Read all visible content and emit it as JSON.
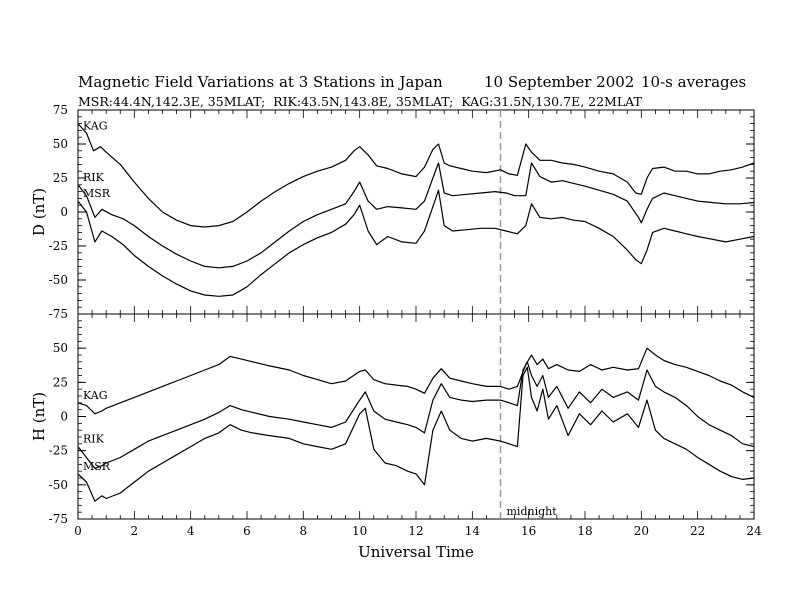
{
  "header": {
    "title": "Magnetic Field Variations at 3 Stations in Japan",
    "date": "10 September 2002",
    "averaging": "10-s averages",
    "stations_line": "MSR:44.4N,142.3E, 35MLAT;  RIK:43.5N,143.8E, 35MLAT;  KAG:31.5N,130.7E, 22MLAT"
  },
  "chart_data": [
    {
      "type": "line",
      "panel": "top",
      "ylabel": "D (nT)",
      "xlim": [
        0,
        24
      ],
      "ylim": [
        -75,
        75
      ],
      "yticks": [
        75,
        50,
        25,
        0,
        -25,
        -50,
        -75
      ],
      "xticks": [],
      "vertical_marker_x": 15,
      "series": [
        {
          "name": "KAG",
          "x": [
            0,
            0.3,
            0.55,
            0.8,
            1,
            1.5,
            2,
            2.5,
            3,
            3.5,
            4,
            4.5,
            5,
            5.5,
            6,
            6.5,
            7,
            7.5,
            8,
            8.5,
            9,
            9.5,
            9.8,
            10,
            10.3,
            10.6,
            11,
            11.5,
            12,
            12.3,
            12.6,
            12.8,
            13,
            13.2,
            13.6,
            14,
            14.5,
            15,
            15.3,
            15.6,
            15.9,
            16.1,
            16.4,
            16.8,
            17.2,
            17.6,
            18,
            18.5,
            19,
            19.5,
            19.8,
            20,
            20.2,
            20.4,
            20.8,
            21.2,
            21.6,
            22,
            22.4,
            22.8,
            23.2,
            23.6,
            24
          ],
          "values": [
            65,
            58,
            45,
            48,
            44,
            35,
            22,
            10,
            0,
            -6,
            -10,
            -11,
            -10,
            -7,
            0,
            8,
            15,
            21,
            26,
            30,
            33,
            38,
            45,
            48,
            42,
            34,
            32,
            28,
            26,
            33,
            46,
            50,
            36,
            34,
            32,
            30,
            29,
            31,
            28,
            27,
            50,
            44,
            38,
            38,
            36,
            35,
            33,
            30,
            28,
            22,
            14,
            13,
            25,
            32,
            33,
            30,
            30,
            28,
            28,
            30,
            31,
            33,
            36
          ]
        },
        {
          "name": "RIK",
          "x": [
            0,
            0.3,
            0.6,
            0.85,
            1.2,
            1.6,
            2,
            2.5,
            3,
            3.5,
            4,
            4.5,
            5,
            5.5,
            6,
            6.5,
            7,
            7.5,
            8,
            8.5,
            9,
            9.5,
            9.8,
            10,
            10.3,
            10.6,
            11,
            11.5,
            12,
            12.3,
            12.6,
            12.8,
            13,
            13.3,
            13.8,
            14.3,
            14.8,
            15.2,
            15.5,
            15.9,
            16.1,
            16.4,
            16.8,
            17.2,
            17.6,
            18,
            18.5,
            19,
            19.5,
            19.9,
            20,
            20.2,
            20.4,
            20.8,
            21.2,
            21.6,
            22,
            22.5,
            23,
            23.5,
            24
          ],
          "values": [
            20,
            12,
            -4,
            2,
            -2,
            -5,
            -10,
            -18,
            -25,
            -31,
            -36,
            -40,
            -41,
            -40,
            -36,
            -30,
            -22,
            -14,
            -7,
            -2,
            2,
            6,
            15,
            22,
            8,
            2,
            4,
            3,
            2,
            8,
            25,
            36,
            14,
            12,
            13,
            14,
            15,
            14,
            12,
            12,
            36,
            26,
            22,
            23,
            21,
            19,
            16,
            13,
            8,
            -4,
            -8,
            2,
            10,
            14,
            12,
            10,
            8,
            7,
            6,
            6,
            7
          ]
        },
        {
          "name": "MSR",
          "x": [
            0,
            0.3,
            0.6,
            0.85,
            1.2,
            1.6,
            2,
            2.5,
            3,
            3.5,
            4,
            4.5,
            5,
            5.5,
            6,
            6.5,
            7,
            7.5,
            8,
            8.5,
            9,
            9.5,
            9.8,
            10,
            10.3,
            10.6,
            11,
            11.5,
            12,
            12.3,
            12.6,
            12.8,
            13,
            13.3,
            13.8,
            14.3,
            14.8,
            15.2,
            15.6,
            15.9,
            16.1,
            16.4,
            16.8,
            17.2,
            17.6,
            18,
            18.5,
            19,
            19.5,
            19.8,
            20,
            20.2,
            20.4,
            20.8,
            21.2,
            21.6,
            22,
            22.5,
            23,
            23.5,
            24
          ],
          "values": [
            8,
            0,
            -22,
            -14,
            -18,
            -24,
            -32,
            -40,
            -47,
            -53,
            -58,
            -61,
            -62,
            -61,
            -55,
            -46,
            -38,
            -30,
            -24,
            -19,
            -15,
            -9,
            -2,
            5,
            -14,
            -24,
            -18,
            -22,
            -23,
            -14,
            4,
            16,
            -10,
            -14,
            -13,
            -12,
            -12,
            -14,
            -16,
            -10,
            6,
            -4,
            -5,
            -4,
            -6,
            -7,
            -12,
            -18,
            -28,
            -35,
            -38,
            -28,
            -15,
            -12,
            -14,
            -16,
            -18,
            -20,
            -22,
            -20,
            -18
          ]
        }
      ]
    },
    {
      "type": "line",
      "panel": "bottom",
      "ylabel": "H (nT)",
      "xlabel": "Universal Time",
      "xlim": [
        0,
        24
      ],
      "ylim": [
        -75,
        75
      ],
      "yticks": [
        50,
        25,
        0,
        -25,
        -50,
        -75
      ],
      "xticks": [
        0,
        2,
        4,
        6,
        8,
        10,
        12,
        14,
        16,
        18,
        20,
        22,
        24
      ],
      "vertical_marker_x": 15,
      "vertical_marker_label": "midnight",
      "series": [
        {
          "name": "KAG",
          "x": [
            0,
            0.3,
            0.6,
            0.85,
            1,
            1.5,
            2,
            2.5,
            3,
            3.5,
            4,
            4.5,
            5,
            5.4,
            5.8,
            6.2,
            6.8,
            7.5,
            8,
            8.5,
            9,
            9.5,
            10,
            10.2,
            10.5,
            10.9,
            11.3,
            11.7,
            12,
            12.3,
            12.6,
            12.9,
            13.2,
            13.6,
            14,
            14.5,
            15,
            15.3,
            15.6,
            15.9,
            16.1,
            16.3,
            16.5,
            16.7,
            17,
            17.4,
            17.8,
            18.2,
            18.6,
            19,
            19.5,
            19.9,
            20.2,
            20.5,
            20.8,
            21.2,
            21.6,
            22,
            22.4,
            22.8,
            23.2,
            23.6,
            24
          ],
          "values": [
            10,
            8,
            2,
            4,
            6,
            10,
            14,
            18,
            22,
            26,
            30,
            34,
            38,
            44,
            42,
            40,
            37,
            34,
            30,
            27,
            24,
            26,
            33,
            34,
            27,
            24,
            23,
            22,
            20,
            17,
            28,
            35,
            28,
            26,
            24,
            22,
            22,
            20,
            22,
            38,
            45,
            38,
            42,
            35,
            38,
            34,
            33,
            38,
            34,
            36,
            34,
            35,
            50,
            45,
            41,
            38,
            36,
            33,
            30,
            26,
            23,
            18,
            14
          ]
        },
        {
          "name": "RIK",
          "x": [
            0,
            0.3,
            0.6,
            0.85,
            1,
            1.5,
            2,
            2.5,
            3,
            3.5,
            4,
            4.5,
            5,
            5.4,
            5.8,
            6.2,
            6.8,
            7.5,
            8,
            8.5,
            9,
            9.5,
            10,
            10.2,
            10.5,
            10.9,
            11.3,
            11.7,
            12,
            12.3,
            12.6,
            12.9,
            13.2,
            13.6,
            14,
            14.5,
            15,
            15.3,
            15.6,
            15.8,
            15.95,
            16.1,
            16.3,
            16.5,
            16.7,
            17,
            17.4,
            17.8,
            18.2,
            18.6,
            19,
            19.5,
            19.9,
            20.2,
            20.5,
            20.8,
            21.2,
            21.6,
            22,
            22.4,
            22.8,
            23.2,
            23.6,
            24
          ],
          "values": [
            -22,
            -30,
            -38,
            -36,
            -34,
            -30,
            -24,
            -18,
            -14,
            -10,
            -6,
            -2,
            3,
            8,
            5,
            3,
            0,
            -2,
            -4,
            -6,
            -8,
            -4,
            12,
            18,
            4,
            -2,
            -4,
            -6,
            -8,
            -12,
            12,
            24,
            14,
            12,
            11,
            12,
            12,
            10,
            8,
            34,
            40,
            30,
            22,
            30,
            14,
            22,
            6,
            18,
            10,
            20,
            14,
            18,
            12,
            34,
            22,
            18,
            14,
            8,
            0,
            -6,
            -10,
            -14,
            -20,
            -22
          ]
        },
        {
          "name": "MSR",
          "x": [
            0,
            0.3,
            0.6,
            0.85,
            1,
            1.5,
            2,
            2.5,
            3,
            3.5,
            4,
            4.5,
            5,
            5.4,
            5.8,
            6.2,
            6.8,
            7.5,
            8,
            8.5,
            9,
            9.5,
            10,
            10.2,
            10.5,
            10.9,
            11.3,
            11.7,
            12,
            12.3,
            12.6,
            12.9,
            13.2,
            13.6,
            14,
            14.5,
            15,
            15.3,
            15.6,
            15.8,
            15.95,
            16.1,
            16.3,
            16.5,
            16.7,
            17,
            17.4,
            17.8,
            18.2,
            18.6,
            19,
            19.5,
            19.9,
            20.2,
            20.5,
            20.8,
            21.2,
            21.6,
            22,
            22.4,
            22.8,
            23.2,
            23.6,
            24
          ],
          "values": [
            -42,
            -48,
            -62,
            -58,
            -60,
            -56,
            -48,
            -40,
            -34,
            -28,
            -22,
            -16,
            -12,
            -6,
            -10,
            -12,
            -14,
            -16,
            -20,
            -22,
            -24,
            -20,
            2,
            6,
            -24,
            -34,
            -36,
            -40,
            -42,
            -50,
            -10,
            4,
            -10,
            -16,
            -18,
            -16,
            -18,
            -20,
            -22,
            30,
            36,
            14,
            4,
            20,
            -2,
            8,
            -14,
            2,
            -6,
            4,
            -4,
            2,
            -8,
            12,
            -10,
            -16,
            -20,
            -24,
            -30,
            -35,
            -40,
            -44,
            -46,
            -45
          ]
        }
      ]
    }
  ]
}
